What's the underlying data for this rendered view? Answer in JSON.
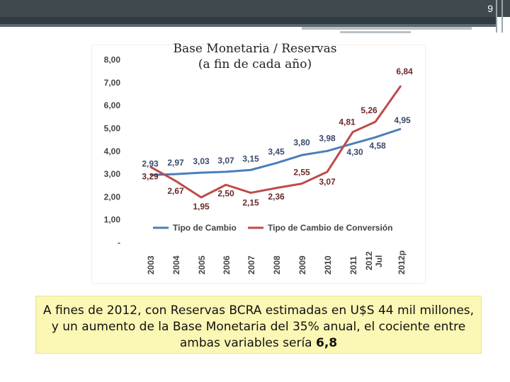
{
  "slide": {
    "page_number": "9"
  },
  "note": {
    "text": "A fines de 2012, con Reservas BCRA estimadas en U$S 44 mil millones, y un aumento de la Base Monetaria del 35% anual, el cociente entre ambas variables sería ",
    "highlight": "6,8"
  },
  "chart_data": {
    "type": "line",
    "title_line1": "Base Monetaria / Reservas",
    "title_line2": "(a fin de cada año)",
    "categories": [
      "2003",
      "2004",
      "2005",
      "2006",
      "2007",
      "2008",
      "2009",
      "2010",
      "2011",
      "2012 Jul",
      "2012p"
    ],
    "y_ticks": [
      "8,00",
      "7,00",
      "6,00",
      "5,00",
      "4,00",
      "3,00",
      "2,00",
      "1,00",
      "-"
    ],
    "ylim": [
      0,
      8
    ],
    "series": [
      {
        "name": "Tipo de Cambio",
        "color": "#4a7ebb",
        "values": [
          2.93,
          2.97,
          3.03,
          3.07,
          3.15,
          3.45,
          3.8,
          3.98,
          4.3,
          4.58,
          4.95
        ],
        "labels": [
          "2,93",
          "2,97",
          "3,03",
          "3,07",
          "3,15",
          "3,45",
          "3,80",
          "3,98",
          "4,30",
          "4,58",
          "4,95"
        ]
      },
      {
        "name": "Tipo de Cambio de Conversión",
        "color": "#be4b48",
        "values": [
          3.29,
          2.67,
          1.95,
          2.5,
          2.15,
          2.36,
          2.55,
          3.07,
          4.81,
          5.26,
          6.84
        ],
        "labels": [
          "3,29",
          "2,67",
          "1,95",
          "2,50",
          "2,15",
          "2,36",
          "2,55",
          "3,07",
          "4,81",
          "5,26",
          "6,84"
        ]
      }
    ],
    "legend_position": "bottom-inside"
  }
}
